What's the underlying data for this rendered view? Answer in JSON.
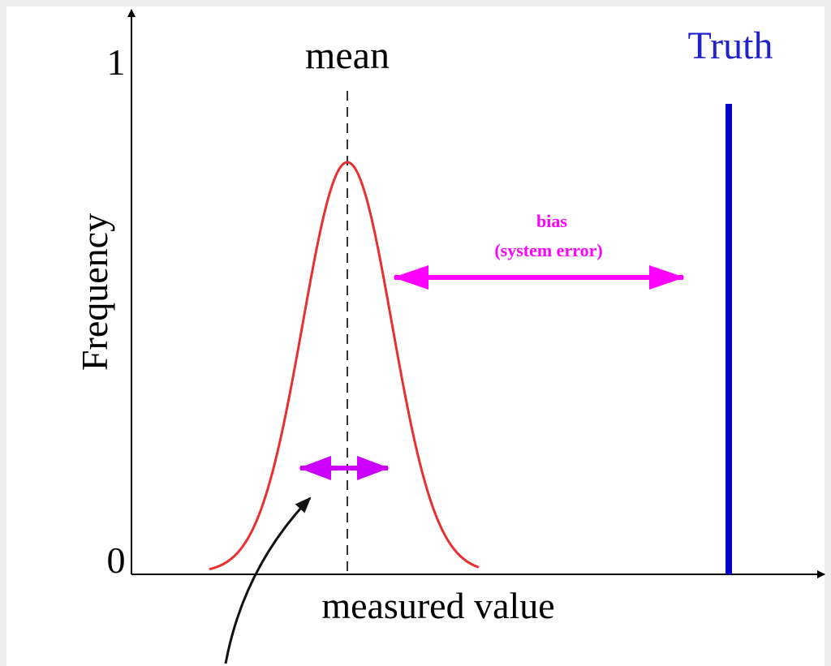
{
  "y_axis": {
    "title": "Frequency",
    "ticks": [
      "0",
      "1"
    ]
  },
  "x_axis": {
    "title": "measured value"
  },
  "labels": {
    "mean": "mean",
    "truth": "Truth",
    "bias": "bias",
    "bias_note": "(system error)"
  }
}
